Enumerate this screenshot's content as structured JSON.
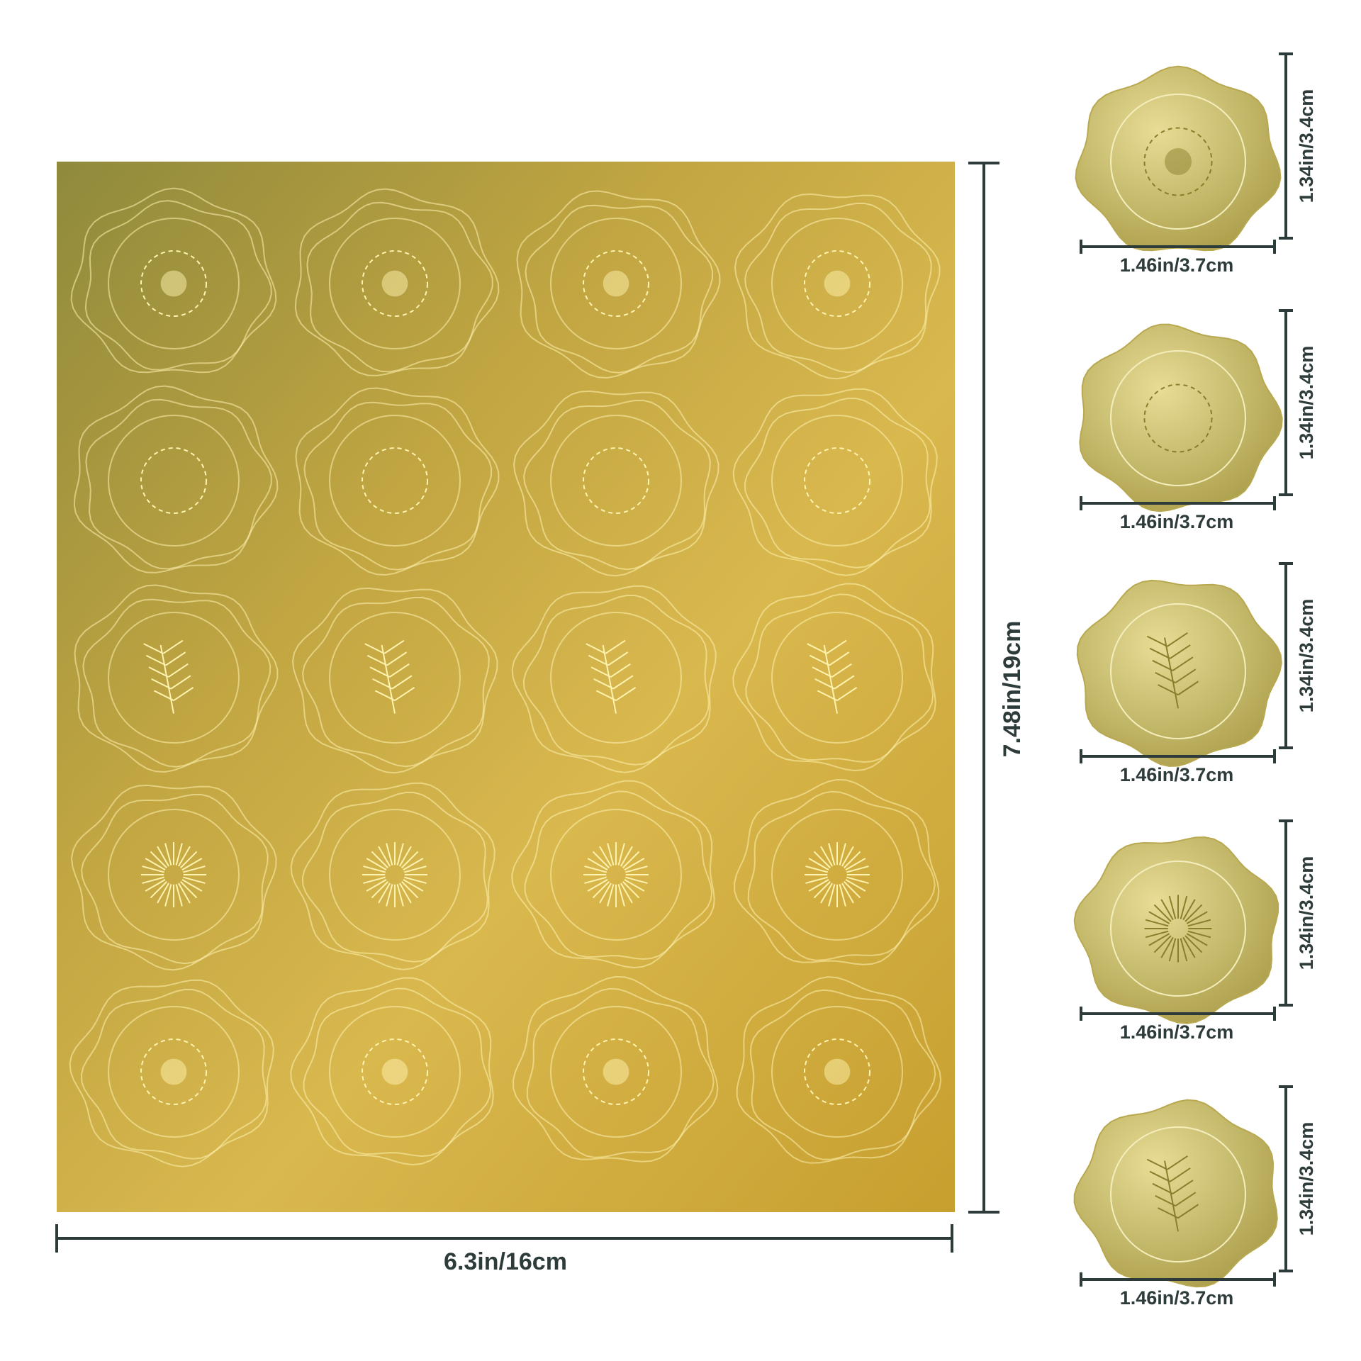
{
  "sheet": {
    "width_label": "6.3in/16cm",
    "height_label": "7.48in/19cm"
  },
  "stickers": [
    {
      "width_label": "1.46in/3.7cm",
      "height_label": "1.34in/3.4cm"
    },
    {
      "width_label": "1.46in/3.7cm",
      "height_label": "1.34in/3.4cm"
    },
    {
      "width_label": "1.46in/3.7cm",
      "height_label": "1.34in/3.4cm"
    },
    {
      "width_label": "1.46in/3.7cm",
      "height_label": "1.34in/3.4cm"
    },
    {
      "width_label": "1.46in/3.7cm",
      "height_label": "1.34in/3.4cm"
    }
  ]
}
